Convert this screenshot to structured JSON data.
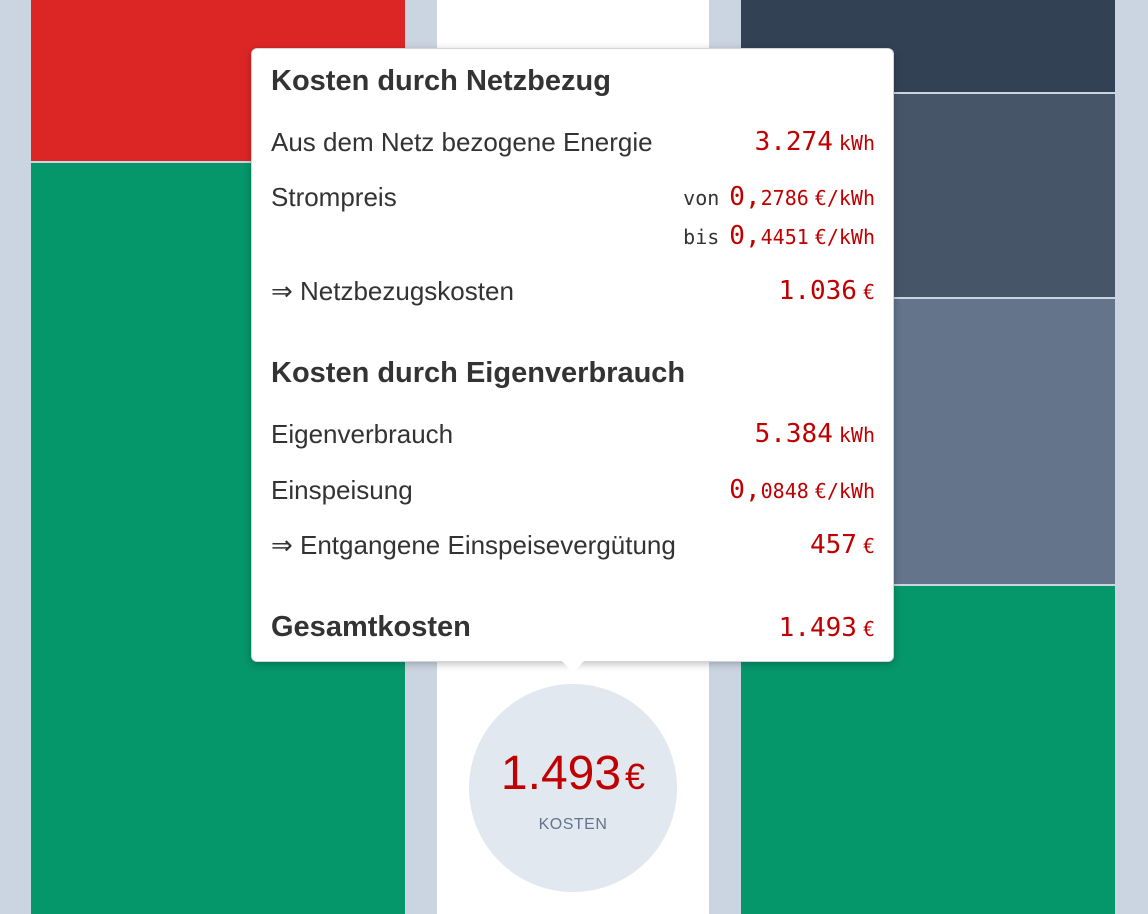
{
  "tooltip": {
    "grid": {
      "title": "Kosten durch Netzbezug",
      "energy_label": "Aus dem Netz bezogene Energie",
      "energy_value": "3.274",
      "energy_unit": "kWh",
      "price_label": "Strompreis",
      "price_from_prefix": "von",
      "price_from_int": "0,",
      "price_from_dec": "2786",
      "price_to_prefix": "bis",
      "price_to_int": "0,",
      "price_to_dec": "4451",
      "price_unit": "€/kWh",
      "cost_label": "⇒ Netzbezugskosten",
      "cost_value": "1.036",
      "cost_unit": "€"
    },
    "self": {
      "title": "Kosten durch Eigenverbrauch",
      "consumption_label": "Eigenverbrauch",
      "consumption_value": "5.384",
      "consumption_unit": "kWh",
      "feedin_label": "Einspeisung",
      "feedin_int": "0,",
      "feedin_dec": "0848",
      "feedin_unit": "€/kWh",
      "lost_label": "⇒ Entgangene Einspeisevergütung",
      "lost_value": "457",
      "lost_unit": "€"
    },
    "total": {
      "label": "Gesamtkosten",
      "value": "1.493",
      "unit": "€"
    }
  },
  "summary": {
    "value": "1.493",
    "unit": "€",
    "label": "KOSTEN"
  },
  "colors": {
    "red": "#dc2626",
    "green": "#059669",
    "slate_dark": "#334155",
    "slate_mid": "#475569",
    "slate_light": "#64748b",
    "value_red": "#c00000"
  }
}
